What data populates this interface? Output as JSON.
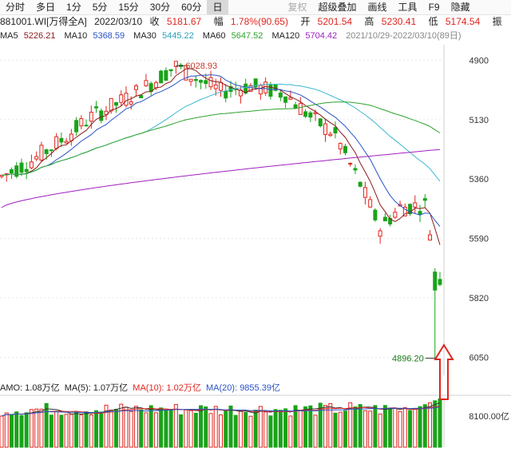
{
  "toolbar": {
    "periods": [
      "分时",
      "多日",
      "1分",
      "5分",
      "15分",
      "30分",
      "60分",
      "日"
    ],
    "active_period": "日",
    "actions": [
      "复权",
      "超级叠加",
      "画线",
      "工具",
      "F9",
      "隐藏"
    ]
  },
  "quote": {
    "code": "881001.WI[万得全A]",
    "date": "2022/03/10",
    "close_label": "收",
    "close": "5181.67",
    "change_label": "幅",
    "change": "1.78%(90.65)",
    "open_label": "开",
    "open": "5201.54",
    "high_label": "高",
    "high": "5230.41",
    "low_label": "低",
    "low": "5174.54",
    "amp_label": "振"
  },
  "ma": {
    "ma5_label": "MA5",
    "ma5": "5226.21",
    "ma10_label": "MA10",
    "ma10": "5368.59",
    "ma30_label": "MA30",
    "ma30": "5445.22",
    "ma60_label": "MA60",
    "ma60": "5647.52",
    "ma120_label": "MA120",
    "ma120": "5704.42",
    "range": "2021/10/29-2022/03/10(89日)"
  },
  "volume_info": {
    "amo": "AMO: 1.08万亿",
    "ma5": "MA(5): 1.07万亿",
    "ma10": "MA(10): 1.02万亿",
    "ma20": "MA(20): 9855.39亿"
  },
  "price_axis": [
    "6050",
    "5820",
    "5590",
    "5360",
    "5130",
    "4900"
  ],
  "volume_axis": "8100.00亿",
  "annotations": {
    "high": "6028.93",
    "low": "4896.20"
  },
  "colors": {
    "up": "#e0261f",
    "down": "#1aa31a",
    "ma5": "#8b1a1a",
    "ma10": "#2a53c7",
    "ma30": "#3bb8cf",
    "ma60": "#2ea32e",
    "ma120": "#a020c0",
    "arrow": "#e0261f"
  },
  "chart_data": {
    "type": "candlestick",
    "y_range": [
      4830,
      6110
    ],
    "y_ticks": [
      4900,
      5130,
      5360,
      5590,
      5820,
      6050
    ],
    "high_marker": 6028.93,
    "low_marker": 4896.2,
    "last_bar": {
      "open": 5201.54,
      "high": 5230.41,
      "low": 5174.54,
      "close": 5181.67
    },
    "ma_last": {
      "MA5": 5226.21,
      "MA10": 5368.59,
      "MA30": 5445.22,
      "MA60": 5647.52,
      "MA120": 5704.42
    },
    "bar_count": 89
  }
}
